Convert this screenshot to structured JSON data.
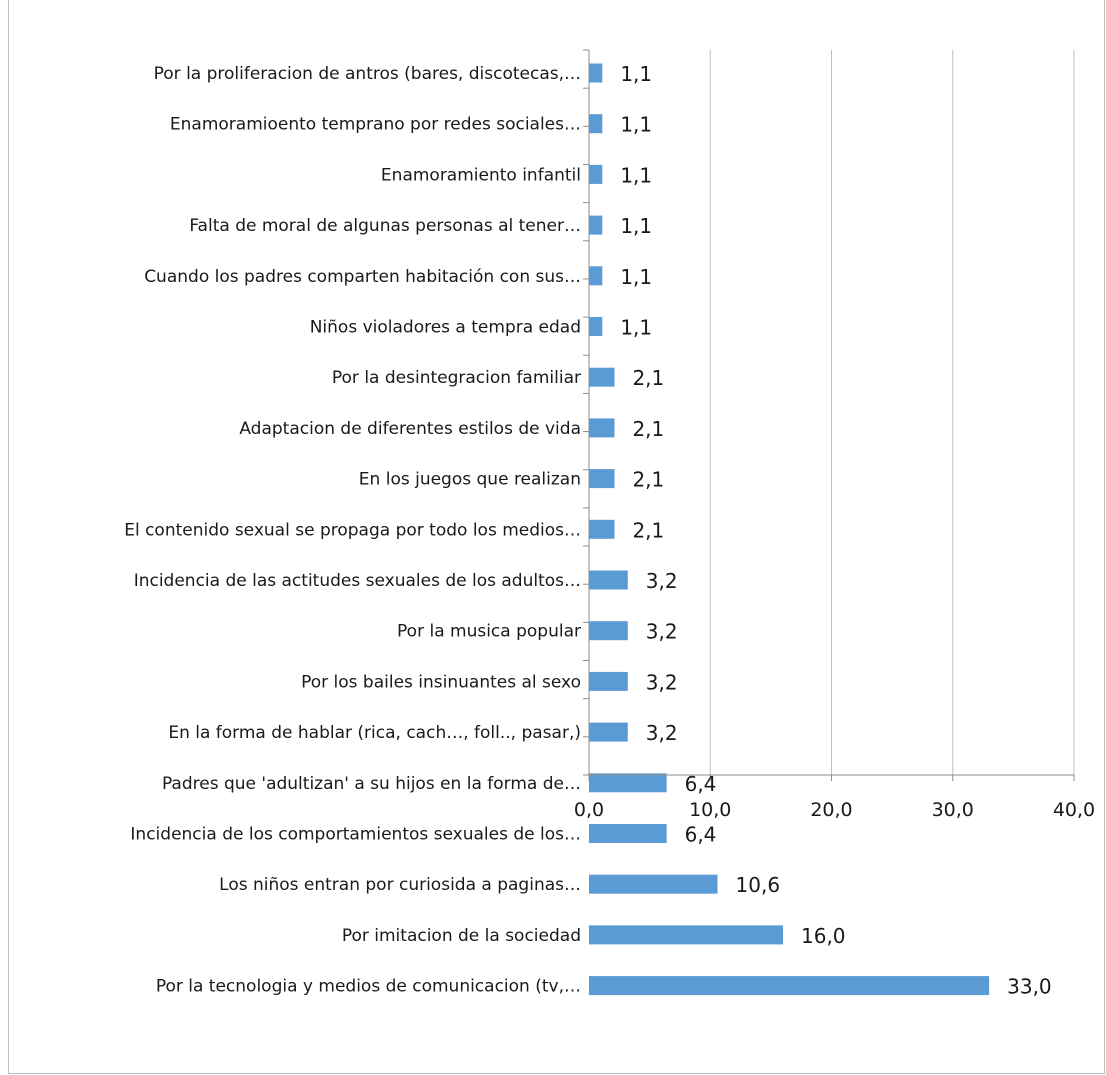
{
  "chart_data": {
    "type": "bar",
    "orientation": "horizontal",
    "title": "",
    "xlabel": "",
    "ylabel": "",
    "xlim": [
      0,
      40
    ],
    "ticks": [
      "0,0",
      "10,0",
      "20,0",
      "30,0",
      "40,0"
    ],
    "tick_values": [
      0,
      10,
      20,
      30,
      40
    ],
    "grid": "vertical",
    "legend": "none",
    "bar_color": "#5b9bd5",
    "categories": [
      "Por la proliferacion de antros (bares, discotecas,…",
      "Enamoramioento temprano por redes sociales…",
      "Enamoramiento infantil",
      "Falta de moral de algunas personas al tener…",
      "Cuando los padres comparten habitación con sus…",
      "Niños violadores a tempra edad",
      "Por la desintegracion familiar",
      "Adaptacion de diferentes estilos de vida",
      "En los juegos que realizan",
      "El contenido sexual se propaga por todo los medios…",
      "Incidencia de las actitudes sexuales de los adultos…",
      "Por la musica popular",
      "Por los bailes insinuantes al sexo",
      "En la forma de hablar (rica, cach…, foll.., pasar,)",
      "Padres que 'adultizan' a su hijos en la forma de…",
      "Incidencia de los comportamientos sexuales de los…",
      "Los niños entran por curiosida a paginas…",
      "Por imitacion de la sociedad",
      "Por la tecnologia y medios de comunicacion (tv,…"
    ],
    "values": [
      1.1,
      1.1,
      1.1,
      1.1,
      1.1,
      1.1,
      2.1,
      2.1,
      2.1,
      2.1,
      3.2,
      3.2,
      3.2,
      3.2,
      6.4,
      6.4,
      10.6,
      16.0,
      33.0
    ],
    "value_labels": [
      "1,1",
      "1,1",
      "1,1",
      "1,1",
      "1,1",
      "1,1",
      "2,1",
      "2,1",
      "2,1",
      "2,1",
      "3,2",
      "3,2",
      "3,2",
      "3,2",
      "6,4",
      "6,4",
      "10,6",
      "16,0",
      "33,0"
    ]
  }
}
